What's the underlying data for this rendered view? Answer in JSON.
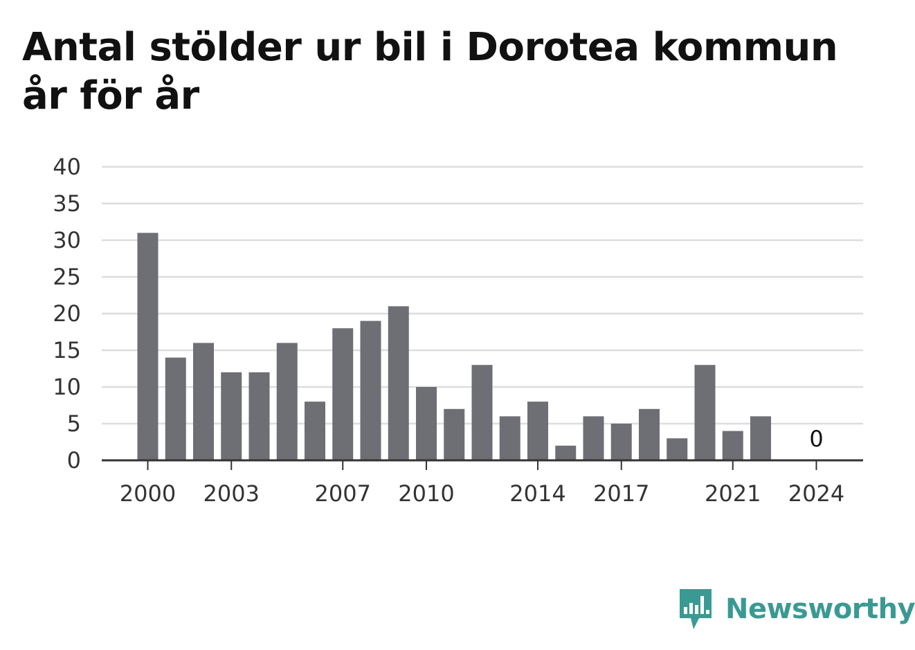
{
  "title": "Antal stölder ur bil i Dorotea kommun år för år",
  "brand": {
    "name": "Newsworthy",
    "color": "#3a9a93",
    "icon": "bar-chart-speech-bubble-icon"
  },
  "colors": {
    "bar": "#6e6e75",
    "grid": "#dddddd",
    "axis": "#333333"
  },
  "chart_data": {
    "type": "bar",
    "title": "Antal stölder ur bil i Dorotea kommun år för år",
    "xlabel": "",
    "ylabel": "",
    "categories": [
      "2000",
      "2001",
      "2002",
      "2003",
      "2004",
      "2005",
      "2006",
      "2007",
      "2008",
      "2009",
      "2010",
      "2011",
      "2012",
      "2013",
      "2014",
      "2015",
      "2016",
      "2017",
      "2018",
      "2019",
      "2020",
      "2021",
      "2022",
      "2023",
      "2024"
    ],
    "values": [
      31,
      14,
      16,
      12,
      12,
      16,
      8,
      18,
      19,
      21,
      10,
      7,
      13,
      6,
      8,
      2,
      6,
      5,
      7,
      3,
      13,
      4,
      6,
      null,
      0
    ],
    "ylim": [
      0,
      40
    ],
    "yticks": [
      0,
      5,
      10,
      15,
      20,
      25,
      30,
      35,
      40
    ],
    "xtick_labels": [
      "2000",
      "2003",
      "2007",
      "2010",
      "2014",
      "2017",
      "2021",
      "2024"
    ],
    "data_labels": [
      {
        "category": "2024",
        "text": "0"
      }
    ],
    "grid": true,
    "legend": "none"
  }
}
